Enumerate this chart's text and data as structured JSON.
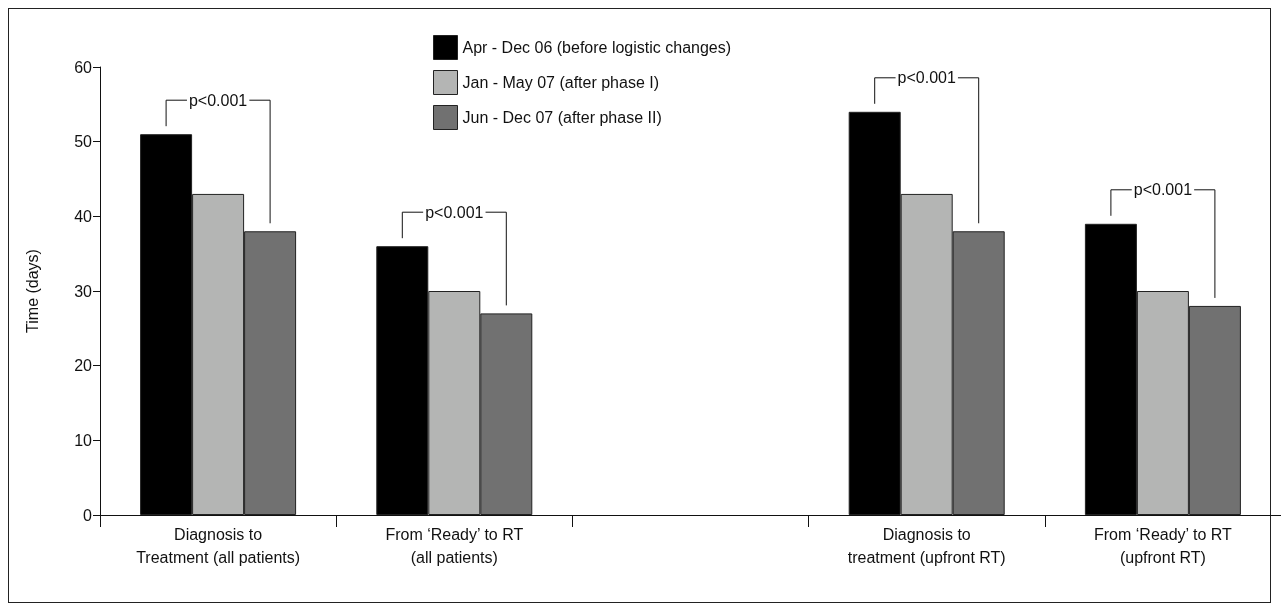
{
  "chart_data": {
    "type": "bar",
    "ylabel": "Time (days)",
    "categories": [
      "Diagnosis to\nTreatment (all patients)",
      "From ‘Ready’ to RT\n(all patients)",
      null,
      "Diagnosis to\ntreatment (upfront RT)",
      "From ‘Ready’ to RT\n(upfront RT)"
    ],
    "series": [
      {
        "name": "Apr - Dec 06 (before logistic changes)",
        "color": "#000000",
        "values": [
          51,
          36,
          null,
          54,
          39
        ]
      },
      {
        "name": "Jan - May 07 (after phase I)",
        "color": "#b4b5b4",
        "values": [
          43,
          30,
          null,
          43,
          30
        ]
      },
      {
        "name": "Jun - Dec 07 (after phase II)",
        "color": "#717171",
        "values": [
          38,
          27,
          null,
          38,
          28
        ]
      }
    ],
    "ylim": [
      0,
      60
    ],
    "yticks": [
      0,
      10,
      20,
      30,
      40,
      50,
      60
    ],
    "grid": false,
    "legend": "top",
    "annotations": [
      "p<0.001",
      "p<0.001",
      "p<0.001",
      "p<0.001"
    ]
  }
}
